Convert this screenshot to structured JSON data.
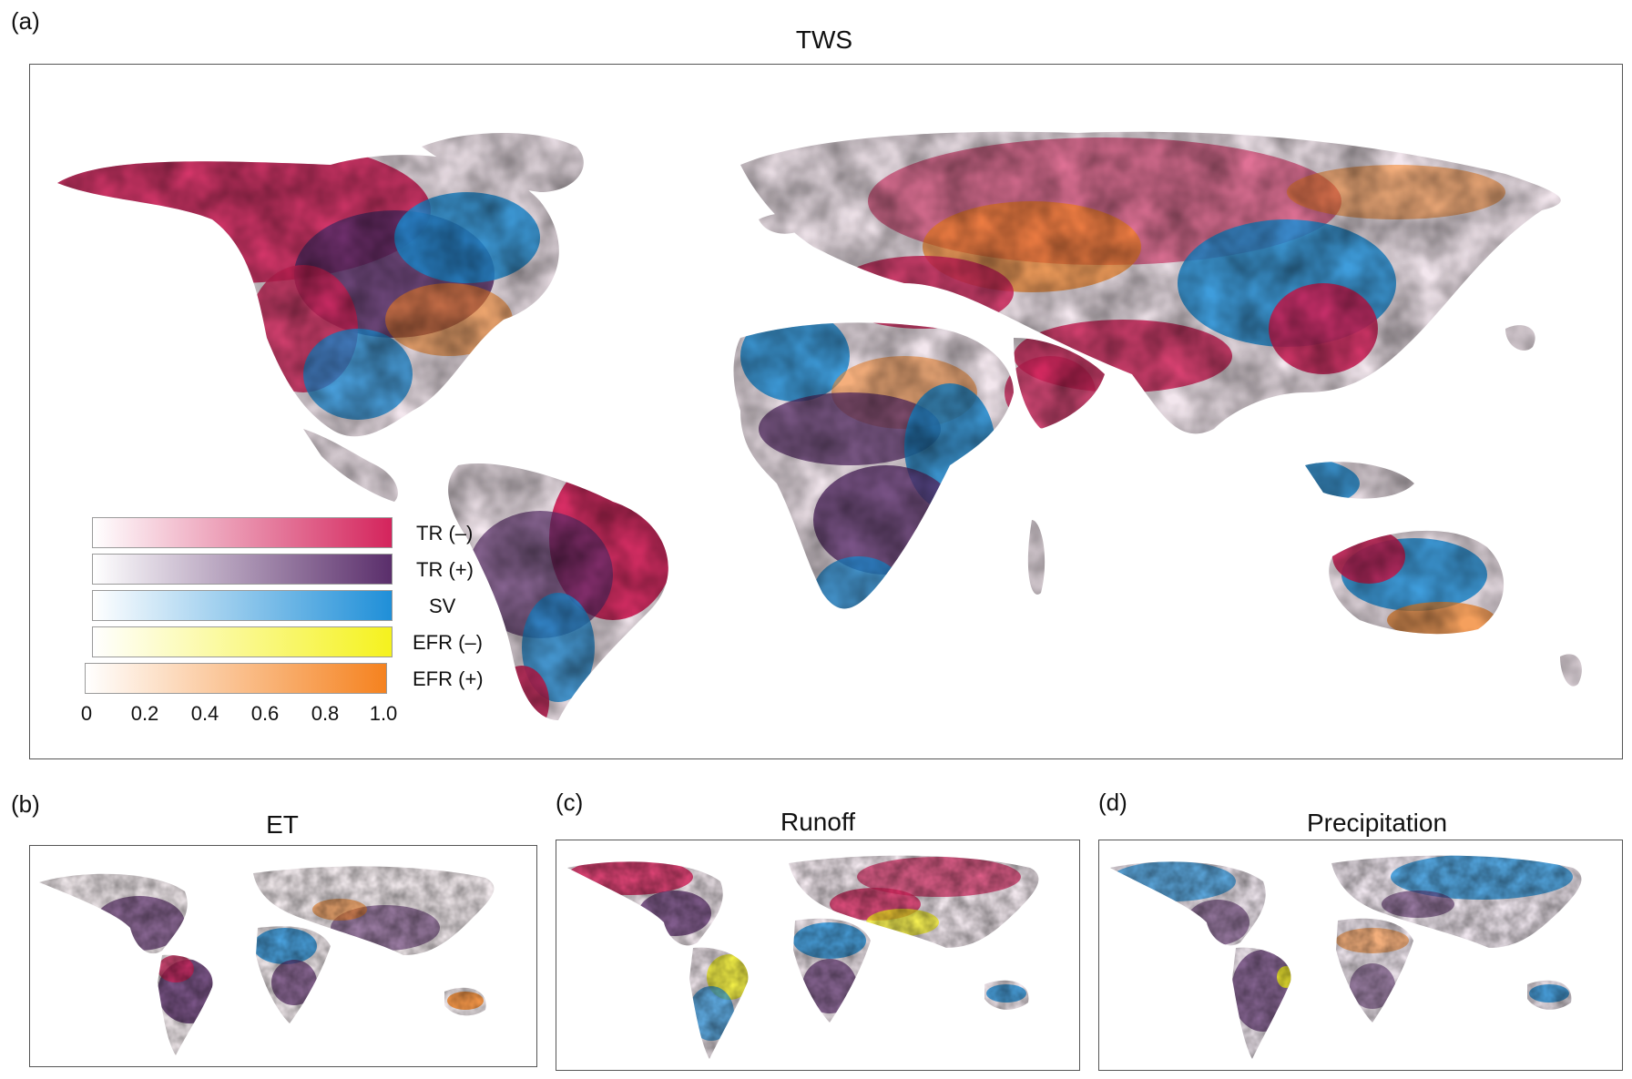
{
  "panels": [
    {
      "letter": "(a)",
      "title": "TWS"
    },
    {
      "letter": "(b)",
      "title": "ET"
    },
    {
      "letter": "(c)",
      "title": "Runoff"
    },
    {
      "letter": "(d)",
      "title": "Precipitation"
    }
  ],
  "legend": {
    "entries": [
      {
        "label": "TR (–)",
        "color": "#d4245c"
      },
      {
        "label": "TR (+)",
        "color": "#5a2e6b"
      },
      {
        "label": "SV",
        "color": "#1f8fd8"
      },
      {
        "label": "EFR (–)",
        "color": "#f5f21e"
      },
      {
        "label": "EFR (+)",
        "color": "#f5821f"
      }
    ],
    "ticks": [
      "0",
      "0.2",
      "0.4",
      "0.6",
      "0.8",
      "1.0"
    ]
  }
}
